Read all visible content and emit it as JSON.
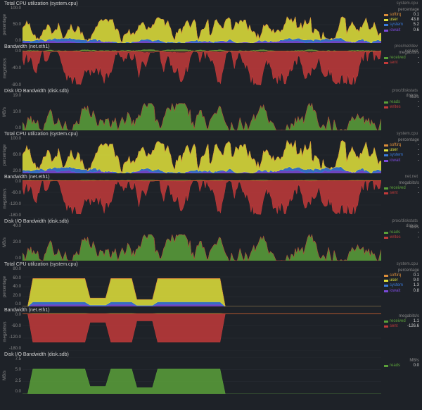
{
  "global": {
    "bg": "#1e2228",
    "text_color": "#c8c8c8",
    "muted_color": "#888888",
    "grid_color": "#2a2e35"
  },
  "panel_groups": [
    {
      "panels": [
        {
          "title": "Total CPU utilization (system.cpu)",
          "meta": "system.cpu",
          "height": 52,
          "y_label": "percentage",
          "ticks": [
            "100.0",
            "50.0",
            "0.0"
          ],
          "unit": "percentage",
          "type": "area-stacked",
          "ylim": [
            0,
            100
          ],
          "series": [
            {
              "name": "softirq",
              "color": "#d98c3a",
              "value": "0.1",
              "order": 3,
              "amp": 1
            },
            {
              "name": "user",
              "color": "#e2e23a",
              "value": "43.8",
              "order": 2,
              "amp": 60
            },
            {
              "name": "system",
              "color": "#3a7ad9",
              "value": "5.2",
              "order": 1,
              "amp": 8
            },
            {
              "name": "iowait",
              "color": "#7a4ad9",
              "value": "0.6",
              "order": 0,
              "amp": 6
            }
          ],
          "density": "high"
        },
        {
          "title": "Bandwidth (net.eth1)",
          "meta": "proc/net/dev\\nnet.net",
          "height": 54,
          "y_label": "megabits/s",
          "ticks": [
            "0.0",
            "-40.0",
            "-80.0"
          ],
          "unit": "megabits/s",
          "type": "area-inverted",
          "ylim": [
            -100,
            5
          ],
          "series": [
            {
              "name": "received",
              "color": "#5aa03a",
              "value": "-",
              "order": 0,
              "amp": 4,
              "dir": 1
            },
            {
              "name": "sent",
              "color": "#c23a3a",
              "value": "-",
              "order": 1,
              "amp": 90,
              "dir": -1
            }
          ],
          "density": "high"
        },
        {
          "title": "Disk I/O Bandwidth (disk.sdb)",
          "meta": "proc/diskstats\\ndisk.io",
          "height": 52,
          "y_label": "MB/s",
          "ticks": [
            "19.0",
            "10.0",
            "0.0"
          ],
          "unit": "MB/s",
          "type": "area",
          "ylim": [
            0,
            19
          ],
          "series": [
            {
              "name": "reads",
              "color": "#5aa03a",
              "value": "-",
              "order": 0,
              "amp": 14
            },
            {
              "name": "writes",
              "color": "#c23a3a",
              "value": "-",
              "order": 1,
              "amp": 0
            }
          ],
          "density": "high"
        }
      ]
    },
    {
      "panels": [
        {
          "title": "Total CPU utilization (system.cpu)",
          "meta": "system.cpu",
          "height": 52,
          "y_label": "percentage",
          "ticks": [
            "100.0",
            "60.0",
            "20.0"
          ],
          "unit": "percentage",
          "type": "area-stacked",
          "ylim": [
            0,
            100
          ],
          "series": [
            {
              "name": "softirq",
              "color": "#d98c3a",
              "value": "-",
              "order": 3,
              "amp": 1
            },
            {
              "name": "user",
              "color": "#e2e23a",
              "value": "-",
              "order": 2,
              "amp": 75
            },
            {
              "name": "system",
              "color": "#3a7ad9",
              "value": "-",
              "order": 1,
              "amp": 10
            },
            {
              "name": "iowait",
              "color": "#7a4ad9",
              "value": "-",
              "order": 0,
              "amp": 8
            }
          ],
          "density": "high"
        },
        {
          "title": "Bandwidth (net.eth1)",
          "meta": "net.net",
          "height": 54,
          "y_label": "megabits/s",
          "ticks": [
            "0.0",
            "-60.0",
            "-120.0",
            "-180.0"
          ],
          "unit": "megabits/s",
          "type": "area-inverted",
          "ylim": [
            -190,
            5
          ],
          "series": [
            {
              "name": "received",
              "color": "#5aa03a",
              "value": "-",
              "order": 0,
              "amp": 3,
              "dir": 1
            },
            {
              "name": "sent",
              "color": "#c23a3a",
              "value": "-",
              "order": 1,
              "amp": 170,
              "dir": -1
            }
          ],
          "density": "high"
        },
        {
          "title": "Disk I/O Bandwidth (disk.sdb)",
          "meta": "proc/diskstats\\ndisk.io",
          "height": 52,
          "y_label": "MB/s",
          "ticks": [
            "40.0",
            "20.0",
            "0.0"
          ],
          "unit": "MB/s",
          "type": "area",
          "ylim": [
            0,
            45
          ],
          "series": [
            {
              "name": "reads",
              "color": "#5aa03a",
              "value": "-",
              "order": 0,
              "amp": 32
            },
            {
              "name": "writes",
              "color": "#c23a3a",
              "value": "-",
              "order": 1,
              "amp": 0
            }
          ],
          "density": "high"
        }
      ]
    },
    {
      "panels": [
        {
          "title": "Total CPU utilization (system.cpu)",
          "meta": "system.cpu",
          "height": 56,
          "y_label": "percentage",
          "ticks": [
            "80.0",
            "60.0",
            "40.0",
            "20.0",
            "0.0"
          ],
          "unit": "percentage",
          "type": "area-stacked",
          "ylim": [
            0,
            85
          ],
          "series": [
            {
              "name": "softirq",
              "color": "#d98c3a",
              "value": "0.1",
              "order": 3,
              "amp": 1
            },
            {
              "name": "user",
              "color": "#e2e23a",
              "value": "9.0",
              "order": 2,
              "amp": 55
            },
            {
              "name": "system",
              "color": "#3a7ad9",
              "value": "1.3",
              "order": 1,
              "amp": 6
            },
            {
              "name": "iowait",
              "color": "#7a4ad9",
              "value": "0.8",
              "order": 0,
              "amp": 5
            }
          ],
          "density": "low"
        },
        {
          "title": "Bandwidth (net.eth1)",
          "meta": "",
          "height": 54,
          "y_label": "megabits/s",
          "ticks": [
            "0.0",
            "-60.0",
            "-120.0",
            "-180.0"
          ],
          "unit": "megabits/s",
          "type": "area-inverted",
          "ylim": [
            -190,
            5
          ],
          "series": [
            {
              "name": "received",
              "color": "#5aa03a",
              "value": "1.1",
              "order": 0,
              "amp": 2,
              "dir": 1
            },
            {
              "name": "sent",
              "color": "#c23a3a",
              "value": "-126.6",
              "order": 1,
              "amp": 160,
              "dir": -1
            }
          ],
          "density": "low"
        },
        {
          "title": "Disk I/O Bandwidth (disk.sdb)",
          "meta": "",
          "height": 52,
          "y_label": "MB/s",
          "ticks": [
            "7.5",
            "5.0",
            "2.5",
            "0.0"
          ],
          "unit": "MB/s",
          "type": "area",
          "ylim": [
            0,
            8
          ],
          "series": [
            {
              "name": "reads",
              "color": "#5aa03a",
              "value": "0.0",
              "order": 0,
              "amp": 6
            }
          ],
          "density": "low"
        }
      ]
    }
  ]
}
